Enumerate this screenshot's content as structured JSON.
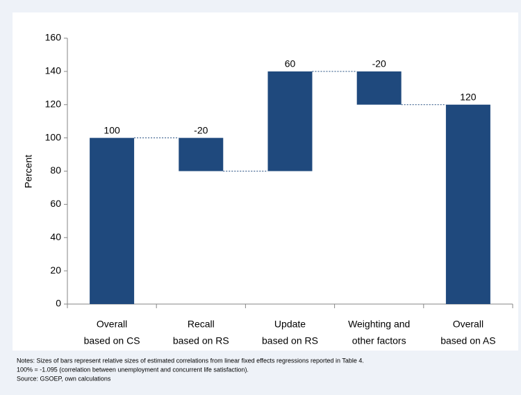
{
  "chart_data": {
    "type": "waterfall",
    "y_label": "Percent",
    "categories": [
      [
        "Overall",
        "based on CS"
      ],
      [
        "Recall",
        "based on RS"
      ],
      [
        "Update",
        "based on RS"
      ],
      [
        "Weighting and",
        "other factors"
      ],
      [
        "Overall",
        "based on AS"
      ]
    ],
    "values": [
      100,
      -20,
      60,
      -20,
      120
    ],
    "totals": [
      true,
      false,
      false,
      false,
      true
    ],
    "color": "#1f497d",
    "ylim": [
      0,
      160
    ],
    "yticks": [
      0,
      20,
      40,
      60,
      80,
      100,
      120,
      140,
      160
    ],
    "grid": false,
    "notes": [
      "Notes: Sizes of bars represent relative sizes of estimated correlations from linear fixed effects regressions reported in Table 4.",
      "100% = -1.095 (correlation between unemployment and concurrent life satisfaction).",
      "Source: GSOEP, own calculations"
    ]
  }
}
